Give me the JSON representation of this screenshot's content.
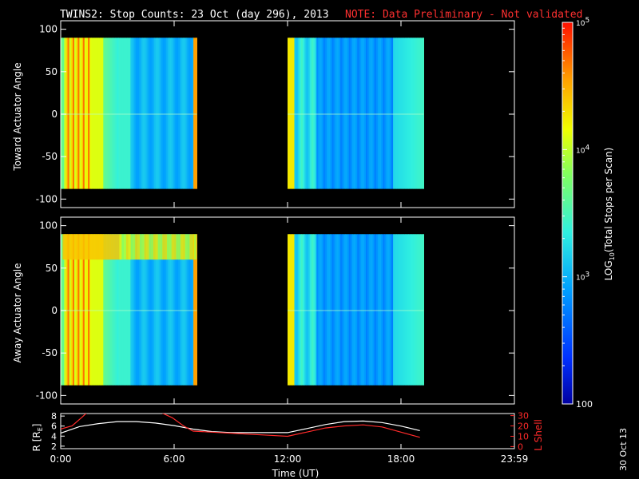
{
  "header": {
    "title": "TWINS2: Stop Counts: 23 Oct (day 296), 2013",
    "note": "NOTE: Data Preliminary - Not validated"
  },
  "footer": {
    "stamp": "30 Oct 13"
  },
  "chart_data": [
    {
      "type": "heatmap",
      "ylabel": "Toward Actuator Angle",
      "ylim": [
        -110,
        110
      ],
      "yticks": [
        "100",
        "50",
        "0",
        "-50",
        "-100"
      ],
      "data_segments_hours": [
        [
          0.0,
          7.2
        ],
        [
          12.0,
          19.2
        ]
      ],
      "data_angle_range": [
        -88,
        90
      ],
      "description_levels": "high (~1e5) near 0:00-2:00, falling to ~1e3 after 3:00; ~1e3 in second segment"
    },
    {
      "type": "heatmap",
      "ylabel": "Away Actuator Angle",
      "ylim": [
        -110,
        110
      ],
      "yticks": [
        "100",
        "50",
        "0",
        "-50",
        "-100"
      ],
      "data_segments_hours": [
        [
          0.0,
          7.2
        ],
        [
          12.0,
          19.2
        ]
      ],
      "data_angle_range": [
        -88,
        90
      ]
    },
    {
      "type": "line",
      "xlabel": "Time (UT)",
      "xticks": [
        "0:00",
        "6:00",
        "12:00",
        "18:00",
        "23:59"
      ],
      "xlim": [
        0,
        24
      ],
      "ylabel_left": "R [Rₑ]",
      "ylabel_left_text": "R [R",
      "ylabel_left_sub": "E",
      "ylabel_left_close": "]",
      "ylim_left": [
        1.5,
        8.5
      ],
      "yticks_left": [
        "8",
        "6",
        "4",
        "2"
      ],
      "ylabel_right": "L Shell",
      "ylim_right": [
        -2,
        32
      ],
      "yticks_right": [
        "30",
        "20",
        "10",
        "0"
      ],
      "series": [
        {
          "name": "R",
          "color": "#ffffff",
          "x": [
            0,
            1,
            2,
            3,
            4,
            5,
            6,
            7,
            8,
            9,
            10,
            11,
            12,
            13,
            14,
            15,
            16,
            17,
            18,
            19
          ],
          "y": [
            4.6,
            5.9,
            6.5,
            6.9,
            6.9,
            6.6,
            6.1,
            5.4,
            4.9,
            4.7,
            4.7,
            4.7,
            4.7,
            5.5,
            6.3,
            6.9,
            7.0,
            6.7,
            6.0,
            5.1
          ]
        },
        {
          "name": "L Shell",
          "color": "#ff2a2a",
          "x": [
            0,
            0.6,
            1.1,
            1.4,
            5.3,
            5.9,
            6.5,
            7.0,
            8,
            9,
            10,
            11,
            12,
            13,
            14,
            15,
            16,
            17,
            18,
            19
          ],
          "y": [
            17,
            20,
            28,
            33,
            33,
            28,
            20,
            15,
            14,
            13,
            12,
            11,
            10,
            14,
            18,
            20,
            21,
            19,
            14,
            9
          ]
        }
      ]
    }
  ],
  "colorbar": {
    "label": "LOG10(Total Stops per Scan)",
    "label_main": "LOG",
    "label_sub": "10",
    "label_rest": "(Total Stops per Scan)",
    "ticks": [
      "10^5",
      "10^4",
      "10^3",
      "100"
    ],
    "scale": "log",
    "range": [
      100,
      100000
    ],
    "colors": [
      "#0000a0",
      "#0040ff",
      "#00b0ff",
      "#40ffd0",
      "#a0ff40",
      "#ffff00",
      "#ff8000",
      "#ff0000"
    ]
  }
}
